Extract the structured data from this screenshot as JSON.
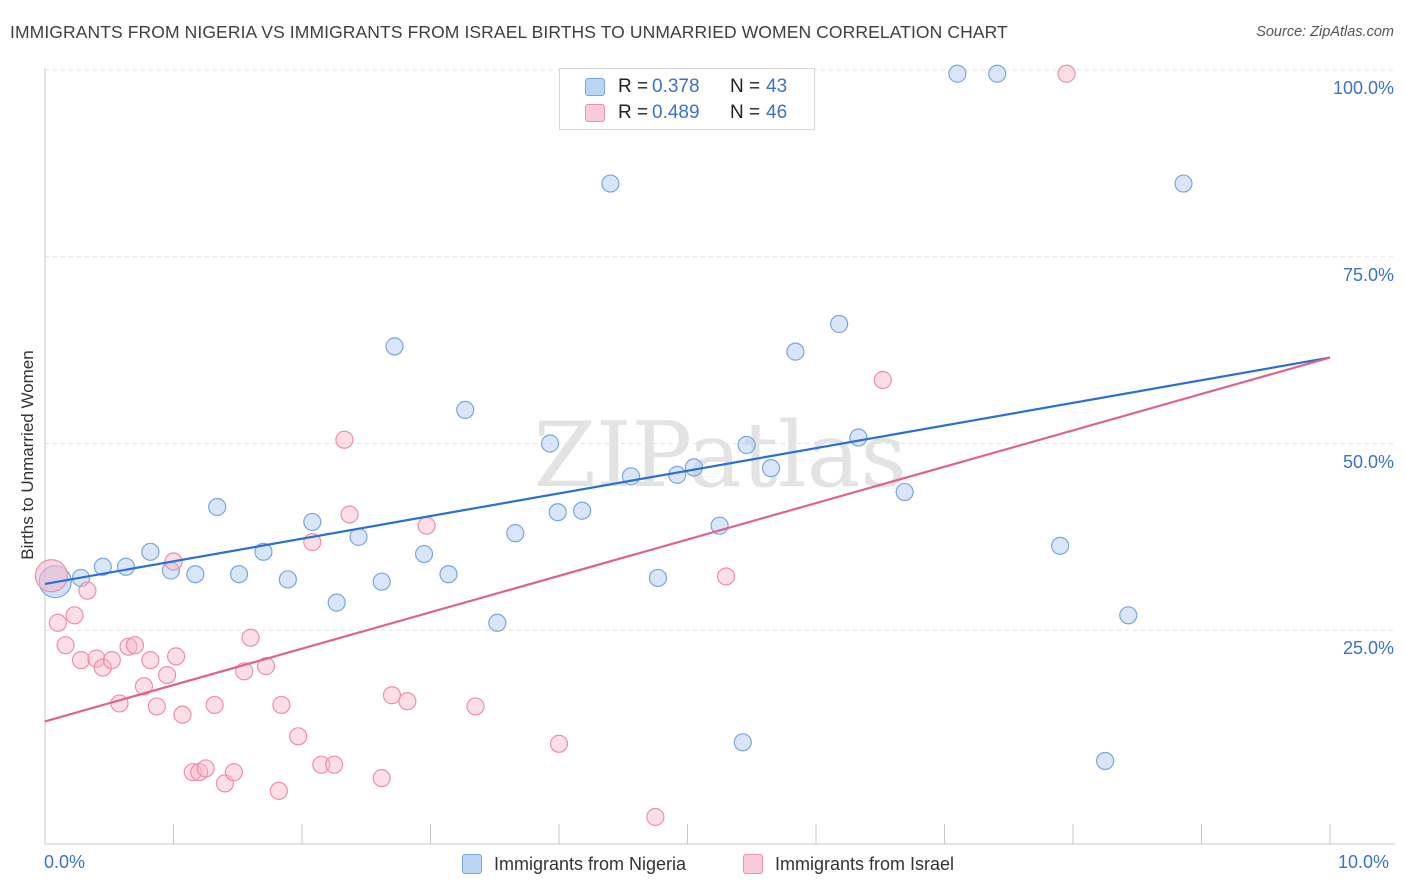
{
  "chart_data": {
    "type": "scatter",
    "title": "IMMIGRANTS FROM NIGERIA VS IMMIGRANTS FROM ISRAEL BIRTHS TO UNMARRIED WOMEN CORRELATION CHART",
    "source": "Source: ZipAtlas.com",
    "xlabel": "",
    "ylabel": "Births to Unmarried Women",
    "xlim": [
      0,
      10
    ],
    "ylim": [
      0,
      100
    ],
    "x_ticks": [
      "0.0%",
      "10.0%"
    ],
    "y_ticks": [
      "25.0%",
      "50.0%",
      "75.0%",
      "100.0%"
    ],
    "watermark": "ZIPatlas",
    "legend": [
      {
        "name": "Immigrants from Nigeria",
        "r_label": "R =",
        "r": "0.378",
        "n_label": "N =",
        "n": "43"
      },
      {
        "name": "Immigrants from Israel",
        "r_label": "R =",
        "r": "0.489",
        "n_label": "N =",
        "n": "46"
      }
    ],
    "series": [
      {
        "name": "Immigrants from Nigeria",
        "color": "#a9c8f0",
        "stroke": "#7aa6df",
        "line_color": "#2b6fd1",
        "trend": [
          [
            0,
            31.2
          ],
          [
            10,
            61.5
          ]
        ],
        "points": [
          [
            0.08,
            31.5,
            "big"
          ],
          [
            0.28,
            32.0
          ],
          [
            0.45,
            33.5
          ],
          [
            0.63,
            33.5
          ],
          [
            0.82,
            35.5
          ],
          [
            0.98,
            33.0
          ],
          [
            1.17,
            32.5
          ],
          [
            1.34,
            41.5
          ],
          [
            1.51,
            32.5
          ],
          [
            1.7,
            35.5
          ],
          [
            1.89,
            31.8
          ],
          [
            2.08,
            39.5
          ],
          [
            2.27,
            28.7
          ],
          [
            2.44,
            37.5
          ],
          [
            2.62,
            31.5
          ],
          [
            2.72,
            63.0
          ],
          [
            2.95,
            35.2
          ],
          [
            3.14,
            32.5
          ],
          [
            3.27,
            54.5
          ],
          [
            3.52,
            26.0
          ],
          [
            3.66,
            38.0
          ],
          [
            3.93,
            50.0
          ],
          [
            3.99,
            40.8
          ],
          [
            4.18,
            41.0
          ],
          [
            4.4,
            84.8
          ],
          [
            4.56,
            45.6
          ],
          [
            4.77,
            32.0
          ],
          [
            4.92,
            45.8
          ],
          [
            5.05,
            46.8
          ],
          [
            5.25,
            39.0
          ],
          [
            5.43,
            10.0
          ],
          [
            5.46,
            49.8
          ],
          [
            5.65,
            46.7
          ],
          [
            5.84,
            62.3
          ],
          [
            6.18,
            66.0
          ],
          [
            6.33,
            50.8
          ],
          [
            6.69,
            43.5
          ],
          [
            7.1,
            99.5
          ],
          [
            7.41,
            99.5
          ],
          [
            7.9,
            36.3
          ],
          [
            8.25,
            7.5
          ],
          [
            8.43,
            27.0
          ],
          [
            8.86,
            84.8
          ]
        ]
      },
      {
        "name": "Immigrants from Israel",
        "color": "#f6b6c8",
        "stroke": "#ee8fab",
        "line_color": "#e0628f",
        "trend": [
          [
            0,
            12.8
          ],
          [
            10,
            61.5
          ]
        ],
        "points": [
          [
            0.05,
            32.3,
            "big"
          ],
          [
            0.1,
            26.0
          ],
          [
            0.16,
            23.0
          ],
          [
            0.23,
            27.0
          ],
          [
            0.28,
            21.0
          ],
          [
            0.33,
            30.3
          ],
          [
            0.4,
            21.2
          ],
          [
            0.45,
            20.0
          ],
          [
            0.52,
            21.0
          ],
          [
            0.58,
            15.2
          ],
          [
            0.65,
            22.8
          ],
          [
            0.7,
            23.0
          ],
          [
            0.77,
            17.5
          ],
          [
            0.82,
            21.0
          ],
          [
            0.87,
            14.8
          ],
          [
            0.95,
            19.0
          ],
          [
            1.02,
            21.5
          ],
          [
            1.07,
            13.7
          ],
          [
            1.15,
            6.0
          ],
          [
            1.2,
            6.0
          ],
          [
            1.25,
            6.5
          ],
          [
            1.32,
            15.0
          ],
          [
            1.4,
            4.5
          ],
          [
            1.47,
            6.0
          ],
          [
            1.55,
            19.5
          ],
          [
            1.6,
            24.0
          ],
          [
            1.72,
            20.2
          ],
          [
            1.82,
            3.5
          ],
          [
            1.84,
            15.0
          ],
          [
            1.97,
            10.8
          ],
          [
            2.08,
            36.8
          ],
          [
            2.15,
            7.0
          ],
          [
            2.25,
            7.0
          ],
          [
            2.33,
            50.5
          ],
          [
            2.37,
            40.5
          ],
          [
            2.62,
            5.2
          ],
          [
            2.7,
            16.3
          ],
          [
            2.82,
            15.5
          ],
          [
            2.97,
            39.0
          ],
          [
            3.35,
            14.8
          ],
          [
            4.0,
            9.8
          ],
          [
            4.75,
            0.0
          ],
          [
            5.3,
            32.2
          ],
          [
            6.52,
            58.5
          ],
          [
            7.95,
            99.5
          ],
          [
            1.0,
            34.2
          ]
        ]
      }
    ]
  }
}
